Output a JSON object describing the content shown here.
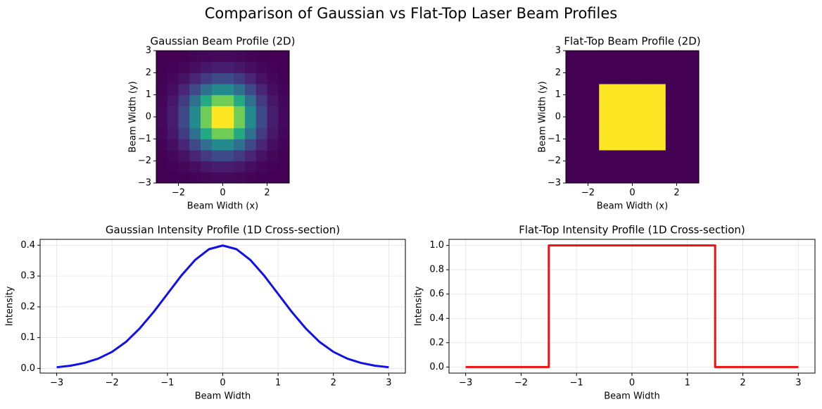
{
  "title": "Comparison of Gaussian vs Flat-Top Laser Beam Profiles",
  "chart_data": [
    {
      "type": "heatmap",
      "title": "Gaussian Beam Profile (2D)",
      "x_label": "Beam Width (x)",
      "y_label": "Beam Width (y)",
      "colormap": "viridis",
      "x": [
        -2.75,
        -2.25,
        -1.75,
        -1.25,
        -0.75,
        -0.25,
        0.25,
        0.75,
        1.25,
        1.75,
        2.25,
        2.75
      ],
      "y": [
        -2.75,
        -2.25,
        -1.75,
        -1.25,
        -0.75,
        -0.25,
        0.25,
        0.75,
        1.25,
        1.75,
        2.25,
        2.75
      ],
      "values": [
        [
          0.001,
          0.002,
          0.005,
          0.011,
          0.017,
          0.022,
          0.022,
          0.017,
          0.011,
          0.005,
          0.002,
          0.001
        ],
        [
          0.002,
          0.006,
          0.017,
          0.037,
          0.06,
          0.078,
          0.078,
          0.06,
          0.037,
          0.017,
          0.006,
          0.002
        ],
        [
          0.005,
          0.017,
          0.047,
          0.099,
          0.163,
          0.209,
          0.209,
          0.163,
          0.099,
          0.047,
          0.017,
          0.005
        ],
        [
          0.011,
          0.037,
          0.099,
          0.21,
          0.346,
          0.444,
          0.444,
          0.346,
          0.21,
          0.099,
          0.037,
          0.011
        ],
        [
          0.017,
          0.06,
          0.163,
          0.346,
          0.57,
          0.732,
          0.732,
          0.57,
          0.346,
          0.163,
          0.06,
          0.017
        ],
        [
          0.022,
          0.078,
          0.209,
          0.444,
          0.732,
          0.939,
          0.939,
          0.732,
          0.444,
          0.209,
          0.078,
          0.022
        ],
        [
          0.022,
          0.078,
          0.209,
          0.444,
          0.732,
          0.939,
          0.939,
          0.732,
          0.444,
          0.209,
          0.078,
          0.022
        ],
        [
          0.017,
          0.06,
          0.163,
          0.346,
          0.57,
          0.732,
          0.732,
          0.57,
          0.346,
          0.163,
          0.06,
          0.017
        ],
        [
          0.011,
          0.037,
          0.099,
          0.21,
          0.346,
          0.444,
          0.444,
          0.346,
          0.21,
          0.099,
          0.037,
          0.011
        ],
        [
          0.005,
          0.017,
          0.047,
          0.099,
          0.163,
          0.209,
          0.209,
          0.163,
          0.099,
          0.047,
          0.017,
          0.005
        ],
        [
          0.002,
          0.006,
          0.017,
          0.037,
          0.06,
          0.078,
          0.078,
          0.06,
          0.037,
          0.017,
          0.006,
          0.002
        ],
        [
          0.001,
          0.002,
          0.005,
          0.011,
          0.017,
          0.022,
          0.022,
          0.017,
          0.011,
          0.005,
          0.002,
          0.001
        ]
      ],
      "xlim": [
        -3,
        3
      ],
      "ylim": [
        -3,
        3
      ],
      "xticks": [
        {
          "value": -2,
          "label": "−2"
        },
        0,
        2
      ],
      "yticks": [
        {
          "value": -3,
          "label": "−3"
        },
        {
          "value": -2,
          "label": "−2"
        },
        {
          "value": -1,
          "label": "−1"
        },
        0,
        1,
        2,
        3
      ],
      "grid": false
    },
    {
      "type": "heatmap",
      "title": "Flat-Top Beam Profile (2D)",
      "x_label": "Beam Width (x)",
      "y_label": "Beam Width (y)",
      "colormap": "viridis",
      "x": [
        -2.75,
        -2.25,
        -1.75,
        -1.25,
        -0.75,
        -0.25,
        0.25,
        0.75,
        1.25,
        1.75,
        2.25,
        2.75
      ],
      "y": [
        -2.75,
        -2.25,
        -1.75,
        -1.25,
        -0.75,
        -0.25,
        0.25,
        0.75,
        1.25,
        1.75,
        2.25,
        2.75
      ],
      "values": [
        [
          0,
          0,
          0,
          0,
          0,
          0,
          0,
          0,
          0,
          0,
          0,
          0
        ],
        [
          0,
          0,
          0,
          0,
          0,
          0,
          0,
          0,
          0,
          0,
          0,
          0
        ],
        [
          0,
          0,
          0,
          0,
          0,
          0,
          0,
          0,
          0,
          0,
          0,
          0
        ],
        [
          0,
          0,
          0,
          1,
          1,
          1,
          1,
          1,
          1,
          0,
          0,
          0
        ],
        [
          0,
          0,
          0,
          1,
          1,
          1,
          1,
          1,
          1,
          0,
          0,
          0
        ],
        [
          0,
          0,
          0,
          1,
          1,
          1,
          1,
          1,
          1,
          0,
          0,
          0
        ],
        [
          0,
          0,
          0,
          1,
          1,
          1,
          1,
          1,
          1,
          0,
          0,
          0
        ],
        [
          0,
          0,
          0,
          1,
          1,
          1,
          1,
          1,
          1,
          0,
          0,
          0
        ],
        [
          0,
          0,
          0,
          1,
          1,
          1,
          1,
          1,
          1,
          0,
          0,
          0
        ],
        [
          0,
          0,
          0,
          0,
          0,
          0,
          0,
          0,
          0,
          0,
          0,
          0
        ],
        [
          0,
          0,
          0,
          0,
          0,
          0,
          0,
          0,
          0,
          0,
          0,
          0
        ],
        [
          0,
          0,
          0,
          0,
          0,
          0,
          0,
          0,
          0,
          0,
          0,
          0
        ]
      ],
      "xlim": [
        -3,
        3
      ],
      "ylim": [
        -3,
        3
      ],
      "xticks": [
        {
          "value": -2,
          "label": "−2"
        },
        0,
        2
      ],
      "yticks": [
        {
          "value": -3,
          "label": "−3"
        },
        {
          "value": -2,
          "label": "−2"
        },
        {
          "value": -1,
          "label": "−1"
        },
        0,
        1,
        2,
        3
      ],
      "grid": false
    },
    {
      "type": "line",
      "title": "Gaussian Intensity Profile (1D Cross-section)",
      "x_label": "Beam Width",
      "y_label": "Intensity",
      "x": [
        -3,
        -2.75,
        -2.5,
        -2.25,
        -2,
        -1.75,
        -1.5,
        -1.25,
        -1,
        -0.75,
        -0.5,
        -0.25,
        0,
        0.25,
        0.5,
        0.75,
        1,
        1.25,
        1.5,
        1.75,
        2,
        2.25,
        2.5,
        2.75,
        3
      ],
      "series": [
        {
          "color": "#1010e8",
          "values": [
            0.004,
            0.009,
            0.018,
            0.032,
            0.054,
            0.086,
            0.13,
            0.183,
            0.242,
            0.301,
            0.352,
            0.387,
            0.399,
            0.387,
            0.352,
            0.301,
            0.242,
            0.183,
            0.13,
            0.086,
            0.054,
            0.032,
            0.018,
            0.009,
            0.004
          ]
        }
      ],
      "xlim": [
        -3.3,
        3.3
      ],
      "ylim": [
        -0.015,
        0.419
      ],
      "xticks": [
        {
          "value": -3,
          "label": "−3"
        },
        {
          "value": -2,
          "label": "−2"
        },
        {
          "value": -1,
          "label": "−1"
        },
        0,
        1,
        2,
        3
      ],
      "yticks": [
        {
          "value": 0,
          "label": "0.0"
        },
        0.1,
        0.2,
        0.3,
        0.4
      ],
      "grid": true
    },
    {
      "type": "line",
      "title": "Flat-Top Intensity Profile (1D Cross-section)",
      "x_label": "Beam Width",
      "y_label": "Intensity",
      "x": [
        -3,
        -1.5,
        -1.5,
        1.5,
        1.5,
        3
      ],
      "series": [
        {
          "color": "#ee1010",
          "values": [
            0,
            0,
            1,
            1,
            0,
            0
          ]
        }
      ],
      "xlim": [
        -3.3,
        3.3
      ],
      "ylim": [
        -0.05,
        1.05
      ],
      "xticks": [
        {
          "value": -3,
          "label": "−3"
        },
        {
          "value": -2,
          "label": "−2"
        },
        {
          "value": -1,
          "label": "−1"
        },
        0,
        1,
        2,
        3
      ],
      "yticks": [
        {
          "value": 0,
          "label": "0.0"
        },
        0.2,
        0.4,
        0.6,
        0.8,
        {
          "value": 1,
          "label": "1.0"
        }
      ],
      "grid": true
    }
  ]
}
